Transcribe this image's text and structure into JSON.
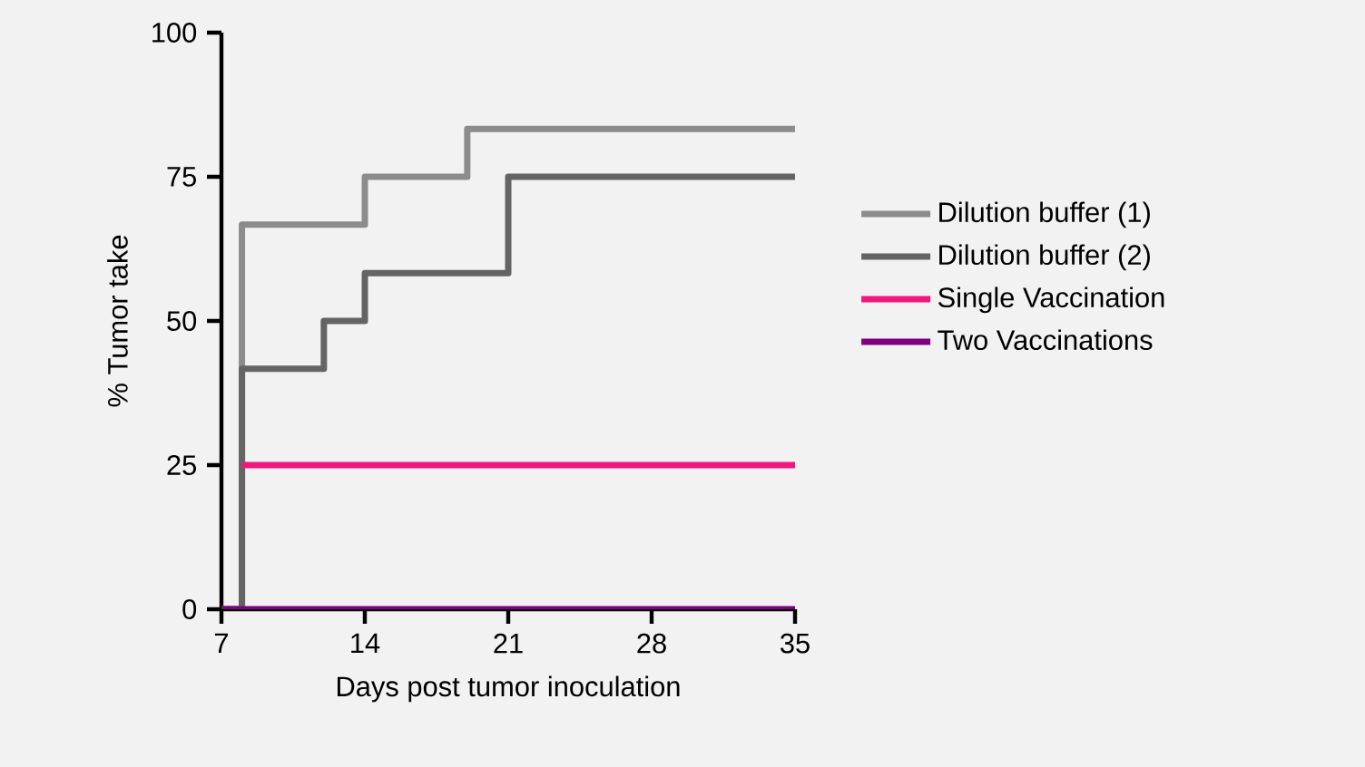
{
  "chart_data": {
    "type": "step",
    "xlabel": "Days post tumor inoculation",
    "ylabel": "% Tumor take",
    "xlim": [
      7,
      35
    ],
    "xticks": [
      7,
      14,
      21,
      28,
      35
    ],
    "ylim": [
      0,
      100
    ],
    "yticks": [
      0,
      25,
      50,
      75,
      100
    ],
    "grid": false,
    "legend": "right",
    "marker": "none",
    "line_style": "solid",
    "series": [
      {
        "name": "Dilution buffer (1)",
        "color": "#8c8c8c",
        "x": [
          7,
          8,
          14,
          19,
          35
        ],
        "values": [
          0,
          66.7,
          75,
          83.3,
          83.3
        ]
      },
      {
        "name": "Dilution buffer (2)",
        "color": "#646464",
        "x": [
          7,
          8,
          12,
          14,
          21,
          35
        ],
        "values": [
          0,
          41.7,
          50,
          58.3,
          75,
          75
        ]
      },
      {
        "name": "Single Vaccination",
        "color": "#f0177f",
        "x": [
          8,
          35
        ],
        "values": [
          25,
          25
        ]
      },
      {
        "name": "Two Vaccinations",
        "color": "#800080",
        "x": [
          7,
          35
        ],
        "values": [
          0,
          0
        ]
      }
    ]
  }
}
